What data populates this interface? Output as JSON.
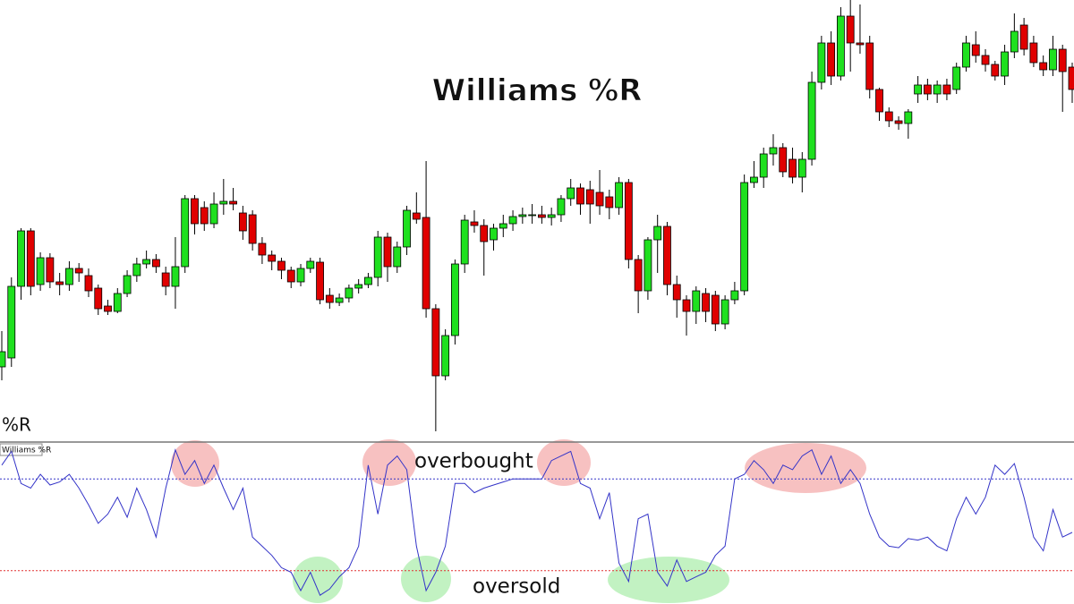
{
  "chart_data": [
    {
      "type": "candlestick",
      "title": "Williams %R",
      "up_color": "#1fe01f",
      "down_color": "#e00000",
      "ylim": [
        0,
        480
      ],
      "open": [
        70,
        80,
        160,
        222,
        162,
        192,
        165,
        162,
        180,
        172,
        158,
        138,
        132,
        152,
        172,
        185,
        190,
        175,
        160,
        182,
        258,
        248,
        230,
        252,
        255,
        242,
        240,
        208,
        195,
        188,
        178,
        165,
        180,
        187,
        150,
        142,
        147,
        158,
        162,
        170,
        215,
        182,
        204,
        242,
        237,
        135,
        60,
        105,
        185,
        232,
        228,
        212,
        225,
        230,
        238,
        240,
        240,
        237,
        240,
        258,
        270,
        268,
        265,
        260,
        248,
        276,
        190,
        155,
        212,
        227,
        162,
        145,
        132,
        152,
        150,
        118,
        145,
        155,
        276,
        282,
        308,
        315,
        302,
        282,
        302,
        388,
        432,
        395,
        462,
        432,
        432,
        380,
        355,
        345,
        342,
        375,
        385,
        375,
        385,
        380,
        405,
        430,
        418,
        408,
        395,
        422,
        452,
        432,
        410,
        402,
        425,
        405
      ],
      "high": [
        110,
        170,
        225,
        225,
        198,
        197,
        175,
        188,
        186,
        180,
        162,
        145,
        158,
        178,
        192,
        200,
        196,
        182,
        215,
        262,
        262,
        255,
        265,
        280,
        270,
        250,
        245,
        215,
        200,
        192,
        182,
        185,
        192,
        192,
        158,
        152,
        162,
        168,
        175,
        222,
        220,
        210,
        250,
        265,
        300,
        140,
        112,
        190,
        240,
        245,
        235,
        230,
        240,
        245,
        248,
        252,
        250,
        248,
        262,
        280,
        275,
        278,
        290,
        268,
        282,
        280,
        195,
        215,
        240,
        232,
        172,
        150,
        160,
        158,
        155,
        150,
        165,
        285,
        300,
        315,
        330,
        320,
        315,
        310,
        400,
        440,
        445,
        472,
        480,
        475,
        440,
        382,
        360,
        350,
        358,
        395,
        392,
        390,
        392,
        410,
        440,
        445,
        425,
        412,
        430,
        465,
        460,
        440,
        418,
        440,
        430,
        410
      ],
      "low": [
        55,
        70,
        145,
        150,
        155,
        158,
        150,
        155,
        165,
        148,
        128,
        128,
        130,
        148,
        165,
        180,
        175,
        150,
        135,
        175,
        218,
        222,
        225,
        240,
        245,
        212,
        200,
        185,
        178,
        168,
        158,
        160,
        175,
        140,
        135,
        138,
        142,
        152,
        158,
        160,
        165,
        175,
        195,
        230,
        125,
        -2,
        55,
        95,
        175,
        220,
        172,
        200,
        215,
        222,
        230,
        230,
        230,
        228,
        232,
        250,
        240,
        230,
        240,
        235,
        240,
        180,
        130,
        145,
        175,
        150,
        125,
        105,
        118,
        120,
        110,
        112,
        140,
        150,
        270,
        270,
        295,
        282,
        275,
        265,
        295,
        380,
        385,
        390,
        400,
        420,
        370,
        345,
        338,
        335,
        325,
        365,
        368,
        365,
        368,
        375,
        400,
        410,
        400,
        390,
        385,
        415,
        418,
        405,
        395,
        395,
        355,
        365
      ],
      "close": [
        87,
        160,
        222,
        160,
        192,
        165,
        162,
        180,
        175,
        155,
        135,
        132,
        152,
        172,
        185,
        190,
        182,
        160,
        182,
        258,
        230,
        230,
        252,
        255,
        252,
        222,
        208,
        195,
        188,
        178,
        165,
        180,
        188,
        145,
        142,
        147,
        158,
        162,
        170,
        215,
        182,
        204,
        245,
        235,
        135,
        60,
        105,
        185,
        234,
        228,
        210,
        225,
        230,
        238,
        240,
        240,
        237,
        240,
        258,
        270,
        252,
        252,
        250,
        248,
        276,
        190,
        155,
        212,
        227,
        162,
        145,
        132,
        155,
        132,
        118,
        145,
        155,
        276,
        282,
        308,
        315,
        288,
        282,
        302,
        388,
        432,
        395,
        462,
        432,
        430,
        380,
        355,
        345,
        342,
        355,
        385,
        375,
        385,
        375,
        405,
        432,
        418,
        408,
        395,
        422,
        445,
        425,
        410,
        402,
        425,
        400,
        380
      ]
    },
    {
      "type": "line",
      "title": "%R",
      "label": "Williams %R",
      "color": "#3434c8",
      "ylim": [
        -100,
        0
      ],
      "levels": [
        {
          "value": -20,
          "color": "#3434c8"
        },
        {
          "value": -80,
          "color": "#e03030"
        }
      ],
      "annotations": [
        "overbought",
        "oversold"
      ],
      "values": [
        -11,
        -2,
        -23,
        -26,
        -17,
        -24,
        -22,
        -17,
        -26,
        -37,
        -49,
        -43,
        -32,
        -45,
        -26,
        -40,
        -58,
        -26,
        -1,
        -17,
        -8,
        -23,
        -11,
        -26,
        -40,
        -26,
        -58,
        -64,
        -70,
        -78,
        -81,
        -93,
        -81,
        -96,
        -92,
        -84,
        -78,
        -64,
        -11,
        -43,
        -11,
        -5,
        -14,
        -64,
        -93,
        -81,
        -64,
        -23,
        -23,
        -29,
        -26,
        -24,
        -22,
        -20,
        -20,
        -20,
        -20,
        -8,
        -5,
        -2,
        -23,
        -26,
        -46,
        -29,
        -75,
        -87,
        -46,
        -43,
        -81,
        -90,
        -73,
        -87,
        -84,
        -81,
        -70,
        -64,
        -20,
        -17,
        -8,
        -14,
        -23,
        -11,
        -14,
        -5,
        -1,
        -17,
        -5,
        -23,
        -14,
        -23,
        -43,
        -58,
        -64,
        -65,
        -59,
        -60,
        -58,
        -64,
        -67,
        -46,
        -32,
        -43,
        -32,
        -11,
        -17,
        -10,
        -32,
        -58,
        -67,
        -40,
        -58,
        -55
      ]
    }
  ]
}
